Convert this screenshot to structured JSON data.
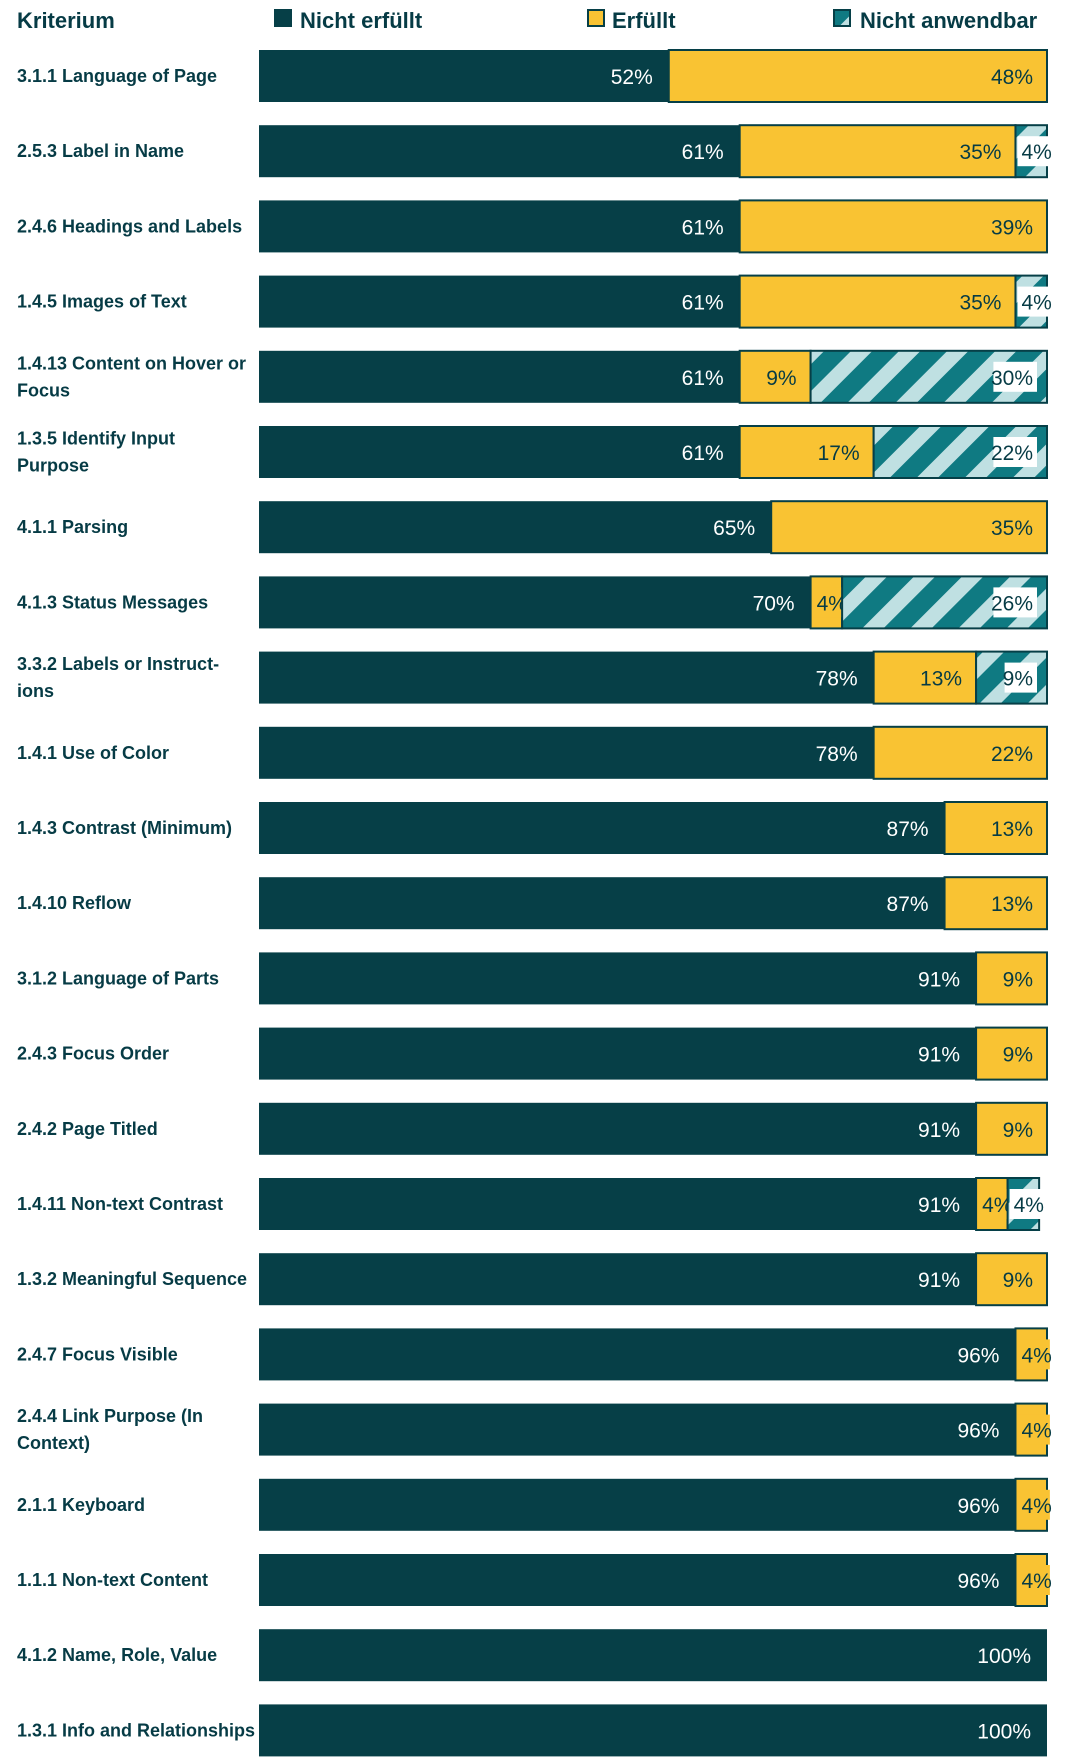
{
  "chart_data": {
    "type": "bar",
    "orientation": "horizontal",
    "stacked": true,
    "category_header": "Kriterium",
    "legend_position": "top",
    "colors": {
      "nicht_erfuellt": "#063f47",
      "erfuellt": "#f9c333",
      "nicht_anwendbar": "#0f7a82",
      "nicht_anwendbar_stripe": "#bfe0e2",
      "text_dark": "#063b45",
      "text_light": "#ffffff"
    },
    "categories": [
      "3.1.1 Language of Page",
      "2.5.3 Label in Name",
      "2.4.6 Headings and Labels",
      "1.4.5 Images of Text",
      "1.4.13 Content on Hover or Focus",
      "1.3.5 Identify Input Purpose",
      "4.1.1 Parsing",
      "4.1.3 Status Messages",
      "3.3.2 Labels or Instruct-ions",
      "1.4.1 Use of Color",
      "1.4.3 Contrast (Minimum)",
      "1.4.10 Reflow",
      "3.1.2 Language of Parts",
      "2.4.3 Focus Order",
      "2.4.2 Page Titled",
      "1.4.11 Non-text Contrast",
      "1.3.2 Meaningful Sequence",
      "2.4.7 Focus Visible",
      "2.4.4 Link Purpose (In Context)",
      "2.1.1 Keyboard",
      "1.1.1 Non-text Content",
      "4.1.2 Name, Role, Value",
      "1.3.1 Info and Relationships"
    ],
    "label_lines": [
      [
        "3.1.1 Language of Page"
      ],
      [
        "2.5.3 Label in Name"
      ],
      [
        "2.4.6 Headings and Labels"
      ],
      [
        "1.4.5 Images of Text"
      ],
      [
        "1.4.13 Content on Hover or",
        "Focus"
      ],
      [
        "1.3.5 Identify Input",
        "Purpose"
      ],
      [
        "4.1.1 Parsing"
      ],
      [
        "4.1.3 Status Messages"
      ],
      [
        "3.3.2 Labels or Instruct-",
        "ions"
      ],
      [
        "1.4.1 Use of Color"
      ],
      [
        "1.4.3 Contrast (Minimum)"
      ],
      [
        "1.4.10 Reflow"
      ],
      [
        "3.1.2 Language of Parts"
      ],
      [
        "2.4.3 Focus Order"
      ],
      [
        "2.4.2 Page Titled"
      ],
      [
        "1.4.11 Non-text Contrast"
      ],
      [
        "1.3.2 Meaningful Sequence"
      ],
      [
        "2.4.7 Focus Visible"
      ],
      [
        "2.4.4 Link Purpose (In",
        "Context)"
      ],
      [
        "2.1.1 Keyboard"
      ],
      [
        "1.1.1 Non-text Content"
      ],
      [
        "4.1.2 Name, Role, Value"
      ],
      [
        "1.3.1 Info and Relationships"
      ]
    ],
    "unit": "%",
    "series": [
      {
        "key": "nicht_erfuellt",
        "name": "Nicht erfüllt",
        "values": [
          52,
          61,
          61,
          61,
          61,
          61,
          65,
          70,
          78,
          78,
          87,
          87,
          91,
          91,
          91,
          91,
          91,
          96,
          96,
          96,
          96,
          100,
          100
        ]
      },
      {
        "key": "erfuellt",
        "name": "Erfüllt",
        "values": [
          48,
          35,
          39,
          35,
          9,
          17,
          35,
          4,
          13,
          22,
          13,
          13,
          9,
          9,
          9,
          4,
          9,
          4,
          4,
          4,
          4,
          0,
          0
        ]
      },
      {
        "key": "nicht_anwendbar",
        "name": "Nicht anwendbar",
        "values": [
          0,
          4,
          0,
          4,
          30,
          22,
          0,
          26,
          9,
          0,
          0,
          0,
          0,
          0,
          0,
          4,
          0,
          0,
          0,
          0,
          0,
          0,
          0
        ]
      }
    ]
  }
}
